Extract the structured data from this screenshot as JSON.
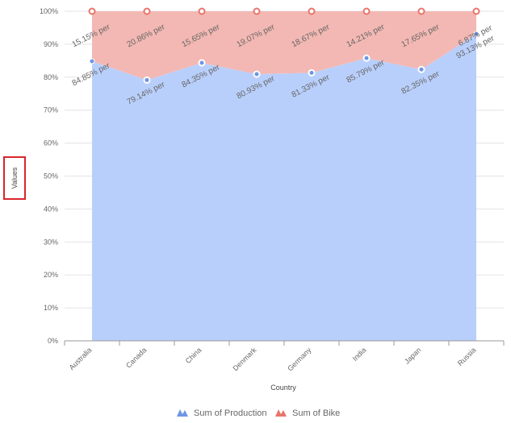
{
  "chart_data": {
    "type": "area",
    "stacked": "percent",
    "xlabel": "Country",
    "ylabel": "Values",
    "categories": [
      "Australia",
      "Canada",
      "China",
      "Denmark",
      "Germany",
      "India",
      "Japan",
      "Russia"
    ],
    "ylim": [
      0,
      100
    ],
    "yticks": [
      "0%",
      "10%",
      "20%",
      "30%",
      "40%",
      "50%",
      "60%",
      "70%",
      "80%",
      "90%",
      "100%"
    ],
    "grid": true,
    "legend_position": "bottom",
    "series": [
      {
        "name": "Sum of Production",
        "color": "#b9cffb",
        "marker_color": "#6e95e6",
        "values": [
          84.85,
          79.14,
          84.35,
          80.93,
          81.33,
          85.79,
          82.35,
          93.13
        ],
        "labels": [
          "84.85% per",
          "79.14% per",
          "84.35% per",
          "80.93% per",
          "81.33% per",
          "85.79% per",
          "82.35% per",
          "93.13% per"
        ]
      },
      {
        "name": "Sum of Bike",
        "color": "#f3b8b3",
        "marker_color": "#e8746b",
        "values": [
          15.15,
          20.86,
          15.65,
          19.07,
          18.67,
          14.21,
          17.65,
          6.87
        ],
        "labels": [
          "15.15% per",
          "20.86% per",
          "15.65% per",
          "19.07% per",
          "18.67% per",
          "14.21% per",
          "17.65% per",
          "6.87% per"
        ]
      }
    ],
    "highlight_color": "#d9252b"
  }
}
